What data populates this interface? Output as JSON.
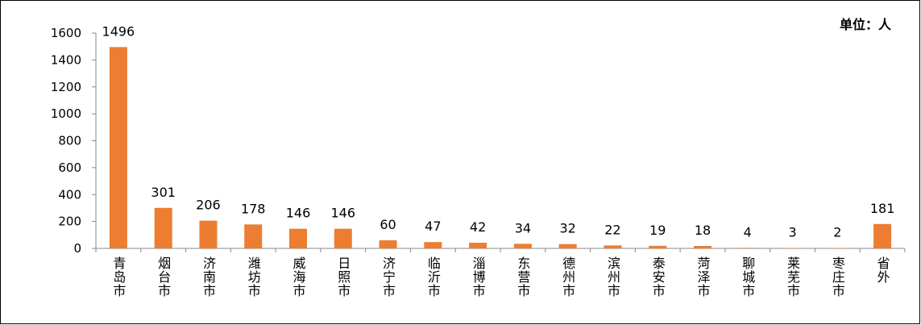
{
  "chart_data": {
    "type": "bar",
    "annotation": "单位：人",
    "categories": [
      "青岛市",
      "烟台市",
      "济南市",
      "潍坊市",
      "威海市",
      "日照市",
      "济宁市",
      "临沂市",
      "淄博市",
      "东营市",
      "德州市",
      "滨州市",
      "泰安市",
      "菏泽市",
      "聊城市",
      "莱芜市",
      "枣庄市",
      "省外"
    ],
    "values": [
      1496,
      301,
      206,
      178,
      146,
      146,
      60,
      47,
      42,
      34,
      32,
      22,
      19,
      18,
      4,
      3,
      2,
      181
    ],
    "color": "#ed7d31",
    "ylim": [
      0,
      1600
    ],
    "yticks": [
      0,
      200,
      400,
      600,
      800,
      1000,
      1200,
      1400,
      1600
    ],
    "grid": false
  }
}
